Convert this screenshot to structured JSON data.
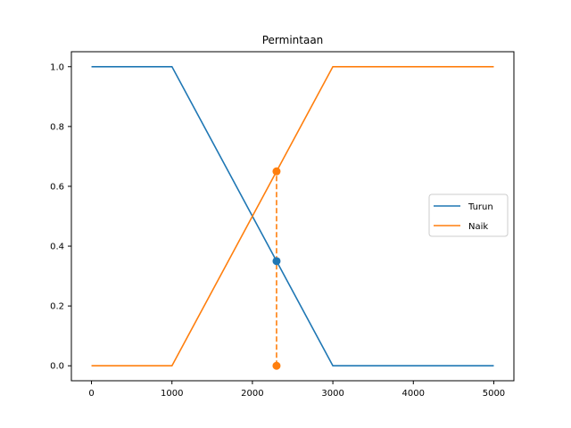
{
  "chart_data": {
    "type": "line",
    "title": "Permintaan",
    "xlabel": "",
    "ylabel": "",
    "xlim": [
      -250,
      5250
    ],
    "ylim": [
      -0.05,
      1.05
    ],
    "x_ticks": [
      0,
      1000,
      2000,
      3000,
      4000,
      5000
    ],
    "y_ticks": [
      0.0,
      0.2,
      0.4,
      0.6,
      0.8,
      1.0
    ],
    "x_tick_labels": [
      "0",
      "1000",
      "2000",
      "3000",
      "4000",
      "5000"
    ],
    "y_tick_labels": [
      "0.0",
      "0.2",
      "0.4",
      "0.6",
      "0.8",
      "1.0"
    ],
    "grid": false,
    "legend_position": "center-right",
    "series": [
      {
        "name": "Turun",
        "color": "#1f77b4",
        "x": [
          0,
          1000,
          3000,
          5000
        ],
        "y": [
          1,
          1,
          0,
          0
        ]
      },
      {
        "name": "Naik",
        "color": "#ff7f0e",
        "x": [
          0,
          1000,
          3000,
          5000
        ],
        "y": [
          0,
          0,
          1,
          1
        ]
      }
    ],
    "markers": [
      {
        "x": 2300,
        "y": 0.35,
        "color": "#1f77b4"
      },
      {
        "x": 2300,
        "y": 0.65,
        "color": "#ff7f0e"
      },
      {
        "x": 2300,
        "y": 0.0,
        "color": "#ff7f0e"
      }
    ],
    "vline": {
      "x": 2300,
      "y_from": 0.0,
      "y_to": 0.65,
      "color": "#ff7f0e",
      "style": "dashed"
    }
  }
}
